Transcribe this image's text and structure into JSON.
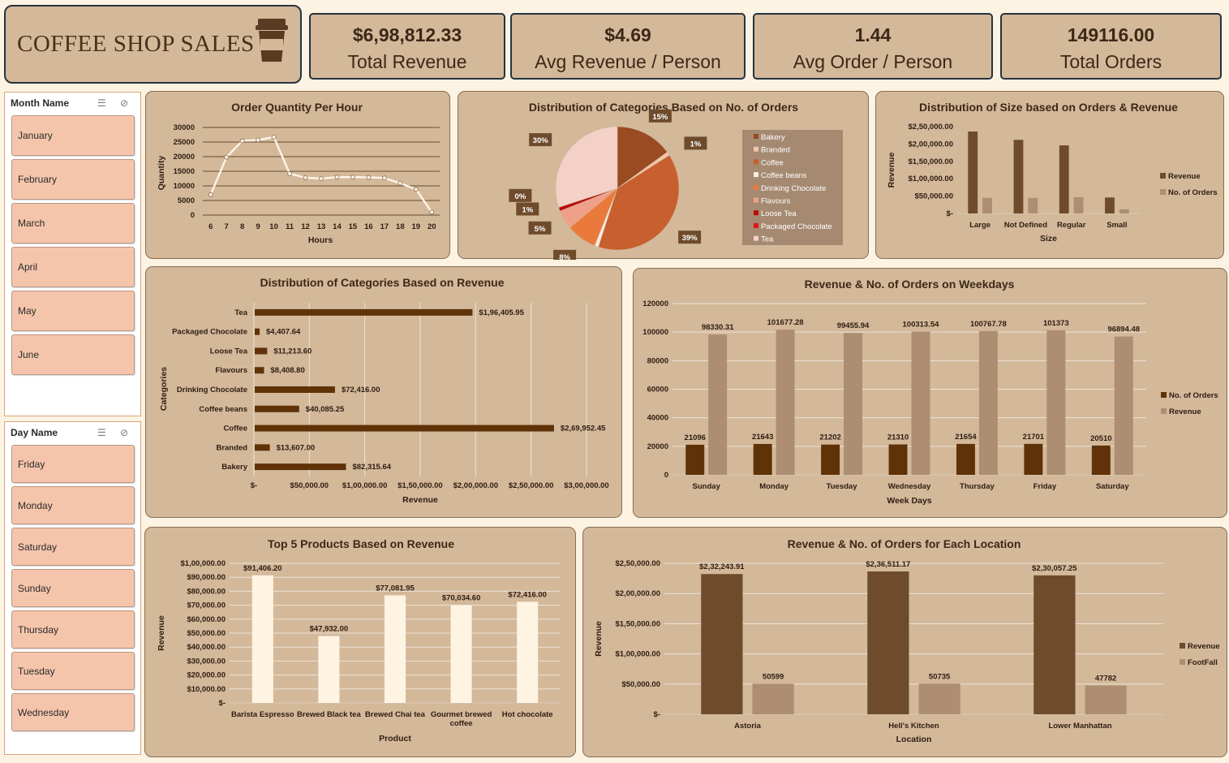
{
  "header": {
    "title": "COFFEE SHOP SALES"
  },
  "kpis": [
    {
      "value": "$6,98,812.33",
      "label": "Total Revenue"
    },
    {
      "value": "$4.69",
      "label": "Avg Revenue / Person"
    },
    {
      "value": "1.44",
      "label": "Avg Order / Person"
    },
    {
      "value": "149116.00",
      "label": "Total Orders"
    }
  ],
  "month_slicer": {
    "title": "Month Name",
    "items": [
      "January",
      "February",
      "March",
      "April",
      "May",
      "June"
    ]
  },
  "day_slicer": {
    "title": "Day Name",
    "items": [
      "Friday",
      "Monday",
      "Saturday",
      "Sunday",
      "Thursday",
      "Tuesday",
      "Wednesday"
    ]
  },
  "colors": {
    "panel": "#d3b89a",
    "dark_brown": "#6e4b2b",
    "light_brown": "#ad8e72",
    "cream": "#fff3e2",
    "deep_brown": "#5f3208"
  },
  "chart_data": [
    {
      "id": "hourly",
      "type": "line",
      "title": "Order Quantity Per Hour",
      "xlabel": "Hours",
      "ylabel": "Quantity",
      "x": [
        6,
        7,
        8,
        9,
        10,
        11,
        12,
        13,
        14,
        15,
        16,
        17,
        18,
        19,
        20
      ],
      "values": [
        7000,
        19800,
        25400,
        25700,
        26700,
        14200,
        12800,
        12500,
        13000,
        13000,
        12900,
        12700,
        10900,
        8800,
        1000
      ],
      "yticks": [
        "0",
        "5000",
        "10000",
        "15000",
        "20000",
        "25000",
        "30000"
      ],
      "ylim": [
        0,
        30000
      ],
      "grid": true
    },
    {
      "id": "cat_orders",
      "type": "pie",
      "title": "Distribution of Categories Based on No. of Orders",
      "categories": [
        "Bakery",
        "Branded",
        "Coffee",
        "Coffee beans",
        "Drinking Chocolate",
        "Flavours",
        "Loose Tea",
        "Packaged Chocolate",
        "Tea"
      ],
      "values": [
        15,
        1,
        39,
        1,
        8,
        5,
        1,
        0,
        30
      ],
      "labels": [
        "15%",
        "1%",
        "39%",
        "1%",
        "8%",
        "5%",
        "1%",
        "0%",
        "30%"
      ],
      "colors": [
        "#9a4b22",
        "#f3c4ac",
        "#c85f2e",
        "#fcebe3",
        "#e97a3b",
        "#eea088",
        "#b80c0c",
        "#e01515",
        "#f4d1c7"
      ],
      "legend": "right"
    },
    {
      "id": "size",
      "type": "bar",
      "title": "Distribution of Size based on Orders & Revenue",
      "xlabel": "Size",
      "ylabel": "Revenue",
      "categories": [
        "Large",
        "Not Defined",
        "Regular",
        "Small"
      ],
      "series": [
        {
          "name": "Revenue",
          "values": [
            236000,
            212000,
            196000,
            46000
          ]
        },
        {
          "name": "No. of Orders",
          "values": [
            45000,
            45000,
            47000,
            12000
          ]
        }
      ],
      "yticks": [
        "$-",
        "$50,000.00",
        "$1,00,000.00",
        "$1,50,000.00",
        "$2,00,000.00",
        "$2,50,000.00"
      ],
      "ylim": [
        0,
        250000
      ],
      "legend": "right"
    },
    {
      "id": "cat_revenue",
      "type": "bar",
      "orientation": "horizontal",
      "title": "Distribution of Categories Based on Revenue",
      "xlabel": "Revenue",
      "ylabel": "Categories",
      "categories": [
        "Tea",
        "Packaged Chocolate",
        "Loose Tea",
        "Flavours",
        "Drinking Chocolate",
        "Coffee beans",
        "Coffee",
        "Branded",
        "Bakery"
      ],
      "values": [
        196405.95,
        4407.64,
        11213.6,
        8408.8,
        72416,
        40085.25,
        269952.45,
        13607,
        82315.64
      ],
      "labels": [
        "$1,96,405.95",
        "$4,407.64",
        "$11,213.60",
        "$8,408.80",
        "$72,416.00",
        "$40,085.25",
        "$2,69,952.45",
        "$13,607.00",
        "$82,315.64"
      ],
      "xticks": [
        "$-",
        "$50,000.00",
        "$1,00,000.00",
        "$1,50,000.00",
        "$2,00,000.00",
        "$2,50,000.00",
        "$3,00,000.00"
      ],
      "xlim": [
        0,
        300000
      ]
    },
    {
      "id": "weekdays",
      "type": "bar",
      "title": "Revenue & No. of Orders on Weekdays",
      "xlabel": "Week Days",
      "ylabel": "",
      "categories": [
        "Sunday",
        "Monday",
        "Tuesday",
        "Wednesday",
        "Thursday",
        "Friday",
        "Saturday"
      ],
      "series": [
        {
          "name": "No. of Orders",
          "values": [
            21096,
            21643,
            21202,
            21310,
            21654,
            21701,
            20510
          ],
          "labels": [
            "21096",
            "21643",
            "21202",
            "21310",
            "21654",
            "21701",
            "20510"
          ]
        },
        {
          "name": "Revenue",
          "values": [
            98330.31,
            101677.28,
            99455.94,
            100313.54,
            100767.78,
            101373,
            96894.48
          ],
          "labels": [
            "98330.31",
            "101677.28",
            "99455.94",
            "100313.54",
            "100767.78",
            "101373",
            "96894.48"
          ]
        }
      ],
      "yticks": [
        "0",
        "20000",
        "40000",
        "60000",
        "80000",
        "100000",
        "120000"
      ],
      "ylim": [
        0,
        120000
      ],
      "legend": "right"
    },
    {
      "id": "top5",
      "type": "bar",
      "title": "Top 5 Products Based on Revenue",
      "xlabel": "Product",
      "ylabel": "Revenue",
      "categories": [
        "Barista Espresso",
        "Brewed Black tea",
        "Brewed Chai tea",
        "Gourmet brewed coffee",
        "Hot chocolate"
      ],
      "values": [
        91406.2,
        47932,
        77081.95,
        70034.6,
        72416
      ],
      "labels": [
        "$91,406.20",
        "$47,932.00",
        "$77,081.95",
        "$70,034.60",
        "$72,416.00"
      ],
      "yticks": [
        "$-",
        "$10,000.00",
        "$20,000.00",
        "$30,000.00",
        "$40,000.00",
        "$50,000.00",
        "$60,000.00",
        "$70,000.00",
        "$80,000.00",
        "$90,000.00",
        "$1,00,000.00"
      ],
      "ylim": [
        0,
        100000
      ]
    },
    {
      "id": "location",
      "type": "bar",
      "title": "Revenue & No. of Orders for Each Location",
      "xlabel": "Location",
      "ylabel": "Revenue",
      "categories": [
        "Astoria",
        "Hell's Kitchen",
        "Lower Manhattan"
      ],
      "series": [
        {
          "name": "Revenue",
          "values": [
            232243.91,
            236511.17,
            230057.25
          ],
          "labels": [
            "$2,32,243.91",
            "$2,36,511.17",
            "$2,30,057.25"
          ]
        },
        {
          "name": "FootFall",
          "values": [
            50599,
            50735,
            47782
          ],
          "labels": [
            "50599",
            "50735",
            "47782"
          ]
        }
      ],
      "yticks": [
        "$-",
        "$50,000.00",
        "$1,00,000.00",
        "$1,50,000.00",
        "$2,00,000.00",
        "$2,50,000.00"
      ],
      "ylim": [
        0,
        250000
      ],
      "legend": "right"
    }
  ]
}
